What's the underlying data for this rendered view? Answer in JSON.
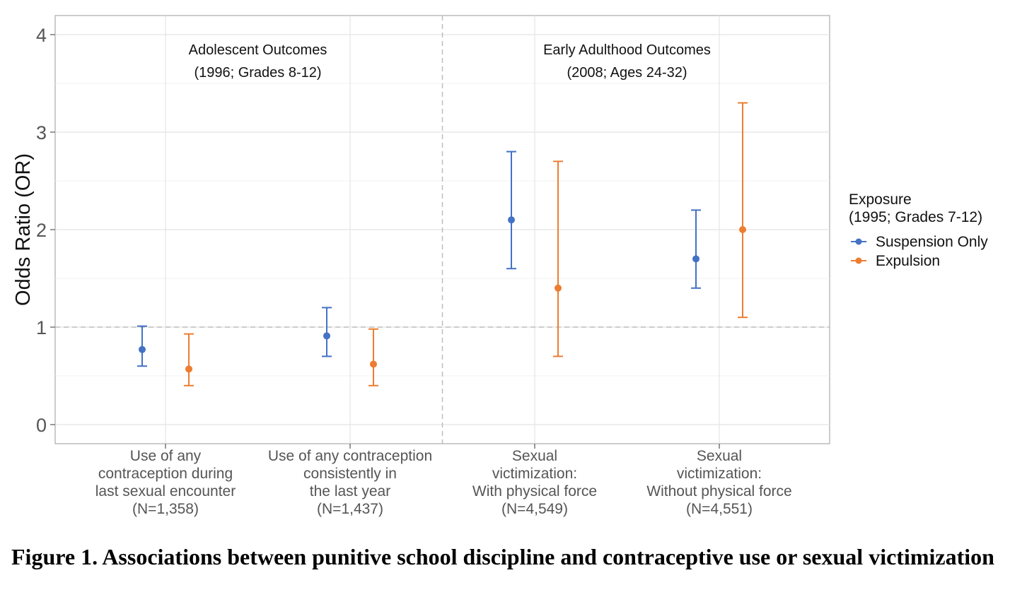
{
  "chart_data": {
    "type": "errorbar",
    "ylabel": "Odds Ratio (OR)",
    "ylim": [
      -0.18,
      4.2
    ],
    "yticks": [
      0,
      1,
      2,
      3,
      4
    ],
    "reference_line": 1,
    "grid": true,
    "categories": [
      [
        "Use of any",
        "contraception during",
        "last sexual encounter",
        "(N=1,358)"
      ],
      [
        "Use of any contraception",
        "consistently in",
        "the last year",
        "(N=1,437)"
      ],
      [
        "Sexual",
        "victimization:",
        "With physical force",
        "(N=4,549)"
      ],
      [
        "Sexual",
        "victimization:",
        "Without physical force",
        "(N=4,551)"
      ]
    ],
    "panels": [
      {
        "title_line1": "Adolescent Outcomes",
        "title_line2": "(1996; Grades 8-12)"
      },
      {
        "title_line1": "Early Adulthood Outcomes",
        "title_line2": "(2008; Ages 24-32)"
      }
    ],
    "legend": {
      "title_line1": "Exposure",
      "title_line2": "(1995; Grades 7-12)",
      "position": "right"
    },
    "series": [
      {
        "name": "Suspension Only",
        "color": "#4472C4",
        "points": [
          {
            "est": 0.77,
            "lo": 0.6,
            "hi": 1.01
          },
          {
            "est": 0.91,
            "lo": 0.7,
            "hi": 1.2
          },
          {
            "est": 2.1,
            "lo": 1.6,
            "hi": 2.8
          },
          {
            "est": 1.7,
            "lo": 1.4,
            "hi": 2.2
          }
        ]
      },
      {
        "name": "Expulsion",
        "color": "#ED7D31",
        "points": [
          {
            "est": 0.57,
            "lo": 0.4,
            "hi": 0.93
          },
          {
            "est": 0.62,
            "lo": 0.4,
            "hi": 0.98
          },
          {
            "est": 1.4,
            "lo": 0.7,
            "hi": 2.7
          },
          {
            "est": 2.0,
            "lo": 1.1,
            "hi": 3.3
          }
        ]
      }
    ]
  },
  "caption": "Figure 1. Associations between punitive school discipline and contraceptive use or sexual victimization"
}
